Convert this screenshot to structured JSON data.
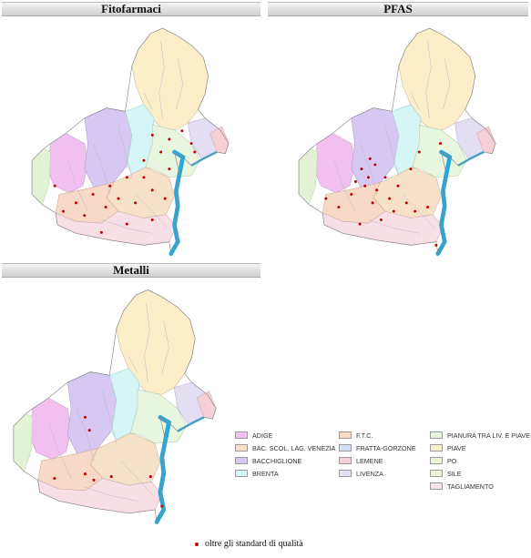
{
  "panels": [
    {
      "title": "Fitofarmaci"
    },
    {
      "title": "PFAS"
    },
    {
      "title": "Metalli"
    }
  ],
  "legend": [
    {
      "label": "ADIGE",
      "color": "#f1c0f1"
    },
    {
      "label": "BAC. SCOL. LAG. VENEZIA",
      "color": "#f6e1c8"
    },
    {
      "label": "BACCHIGLIONE",
      "color": "#d6c8f2"
    },
    {
      "label": "BRENTA",
      "color": "#d6f6f6"
    },
    {
      "label": "F.T.C.",
      "color": "#f8d8c6"
    },
    {
      "label": "FRATTA-GORZONE",
      "color": "#d3e1f2"
    },
    {
      "label": "LEMENE",
      "color": "#f6d0d6"
    },
    {
      "label": "LIVENZA",
      "color": "#e4def2"
    },
    {
      "label": "PIANURA TRA LIV. E PIAVE",
      "color": "#e6f6da"
    },
    {
      "label": "PIAVE",
      "color": "#fbeec8"
    },
    {
      "label": "PO",
      "color": "#e9f6d3"
    },
    {
      "label": "SILE",
      "color": "#e8f6e0"
    },
    {
      "label": "TAGLIAMENTO",
      "color": "#f8e0ef"
    }
  ],
  "footnote": "oltre gli standard di qualità",
  "marker_color": "#c00000",
  "lagoon_color": "#2aa7d8"
}
